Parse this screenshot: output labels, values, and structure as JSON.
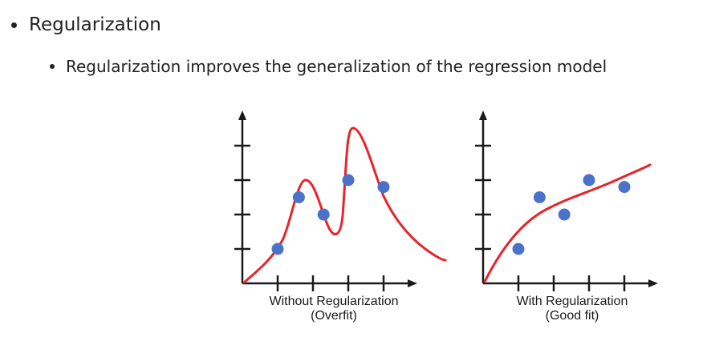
{
  "slide": {
    "bullet_level1": "Regularization",
    "bullet_level2": "Regularization improves the generalization of the regression model"
  },
  "colors": {
    "curve": "#e8242b",
    "points": "#4a72c8",
    "axes": "#1a1a1a"
  },
  "panels": [
    {
      "caption_line1": "Without Regularization",
      "caption_line2": "(Overfit)",
      "fit": "overfit",
      "points": [
        {
          "x": 1.0,
          "y": 1.0
        },
        {
          "x": 1.6,
          "y": 2.5
        },
        {
          "x": 2.3,
          "y": 2.0
        },
        {
          "x": 3.0,
          "y": 3.0
        },
        {
          "x": 4.0,
          "y": 2.8
        }
      ]
    },
    {
      "caption_line1": "With Regularization",
      "caption_line2": "(Good fit)",
      "fit": "good-fit",
      "points": [
        {
          "x": 1.0,
          "y": 1.0
        },
        {
          "x": 1.6,
          "y": 2.5
        },
        {
          "x": 2.3,
          "y": 2.0
        },
        {
          "x": 3.0,
          "y": 3.0
        },
        {
          "x": 4.0,
          "y": 2.8
        }
      ]
    }
  ]
}
